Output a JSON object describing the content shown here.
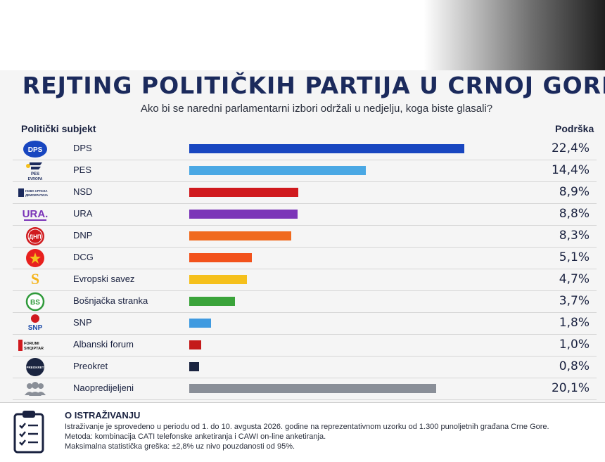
{
  "chart_data": {
    "type": "bar",
    "orientation": "horizontal",
    "title": "REJTING POLITIČKIH PARTIJA U CRNOJ GORI",
    "subtitle": "Ako bi se naredni parlamentarni izbori održali u nedjelju, koga biste glasali?",
    "category_header": "Politički subjekt",
    "value_header": "Podrška",
    "categories": [
      "DPS",
      "PES",
      "NSD",
      "URA",
      "DNP",
      "DCG",
      "Evropski savez",
      "Bošnjačka stranka",
      "SNP",
      "Albanski forum",
      "Preokret",
      "Naopredijeljeni"
    ],
    "values": [
      22.4,
      14.4,
      8.9,
      8.8,
      8.3,
      5.1,
      4.7,
      3.7,
      1.8,
      1.0,
      0.8,
      20.1
    ],
    "value_labels": [
      "22,4%",
      "14,4%",
      "8,9%",
      "8,8%",
      "8,3%",
      "5,1%",
      "4,7%",
      "3,7%",
      "1,8%",
      "1,0%",
      "0,8%",
      "20,1%"
    ],
    "colors": [
      "#1846c0",
      "#4aa8e4",
      "#d01a1e",
      "#7b35b8",
      "#f06a1e",
      "#f2521c",
      "#f5c01c",
      "#3aa33a",
      "#3f9ae0",
      "#c41a1a",
      "#1a2440",
      "#8a8f98"
    ],
    "xlim": [
      0,
      22.4
    ],
    "grid": false,
    "legend": "none"
  },
  "logos": [
    {
      "text": "DPS",
      "icon": "dps-logo-icon"
    },
    {
      "text": "PES EVROPA",
      "icon": "pes-logo-icon"
    },
    {
      "text": "НОВА СРПСКА ДЕМОКРАТИЈА",
      "icon": "nsd-logo-icon"
    },
    {
      "text": "URA.",
      "icon": "ura-logo-icon"
    },
    {
      "text": "ДНП",
      "icon": "dnp-logo-icon"
    },
    {
      "text": "",
      "icon": "dcg-logo-icon"
    },
    {
      "text": "S",
      "icon": "evropski-savez-logo-icon"
    },
    {
      "text": "BS",
      "icon": "bs-logo-icon"
    },
    {
      "text": "SNP",
      "icon": "snp-logo-icon"
    },
    {
      "text": "FORUMI SHQIPTAR",
      "icon": "albanski-forum-logo-icon"
    },
    {
      "text": "PREOKRET",
      "icon": "preokret-logo-icon"
    },
    {
      "text": "",
      "icon": "people-icon"
    }
  ],
  "footer": {
    "title": "O ISTRAŽIVANJU",
    "line1": "Istraživanje je sprovedeno u periodu od 1. do 10. avgusta 2026. godine na reprezentativnom uzorku od 1.300 punoljetnih građana Crne Gore.",
    "line2": "Metoda: kombinacija CATI telefonske anketiranja i CAWI on-line anketiranja.",
    "line3": "Maksimalna statistička greška: ±2,8% uz nivo pouzdanosti od 95%.",
    "icon": "clipboard-checklist-icon"
  }
}
